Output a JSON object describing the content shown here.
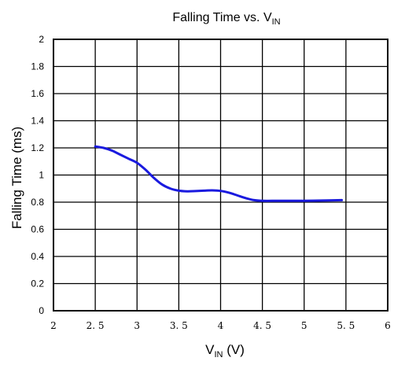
{
  "chart_data": {
    "type": "line",
    "title_main": "Falling Time vs. V",
    "title_sub": "IN",
    "xlabel_main": "V",
    "xlabel_sub": "IN",
    "xlabel_unit": " (V)",
    "ylabel": "Falling Time (ms)",
    "xlim": [
      2,
      6
    ],
    "ylim": [
      0,
      2
    ],
    "x_ticks": [
      "2",
      "2. 5",
      "3",
      "3. 5",
      "4",
      "4. 5",
      "5",
      "5. 5",
      "6"
    ],
    "y_ticks": [
      "0",
      "0.2",
      "0.4",
      "0.6",
      "0.8",
      "1",
      "1.2",
      "1.4",
      "1.6",
      "1.8",
      "2"
    ],
    "grid": true,
    "series": [
      {
        "color": "#1a1adf",
        "x": [
          2.5,
          2.6,
          2.7,
          2.8,
          2.9,
          3.0,
          3.1,
          3.2,
          3.3,
          3.4,
          3.5,
          3.6,
          3.7,
          3.8,
          3.9,
          4.0,
          4.1,
          4.2,
          4.3,
          4.4,
          4.5,
          4.7,
          5.0,
          5.3,
          5.45
        ],
        "y": [
          1.21,
          1.2,
          1.18,
          1.15,
          1.12,
          1.09,
          1.04,
          0.98,
          0.93,
          0.9,
          0.885,
          0.88,
          0.882,
          0.885,
          0.887,
          0.883,
          0.87,
          0.85,
          0.83,
          0.815,
          0.81,
          0.81,
          0.81,
          0.813,
          0.815
        ]
      }
    ]
  }
}
